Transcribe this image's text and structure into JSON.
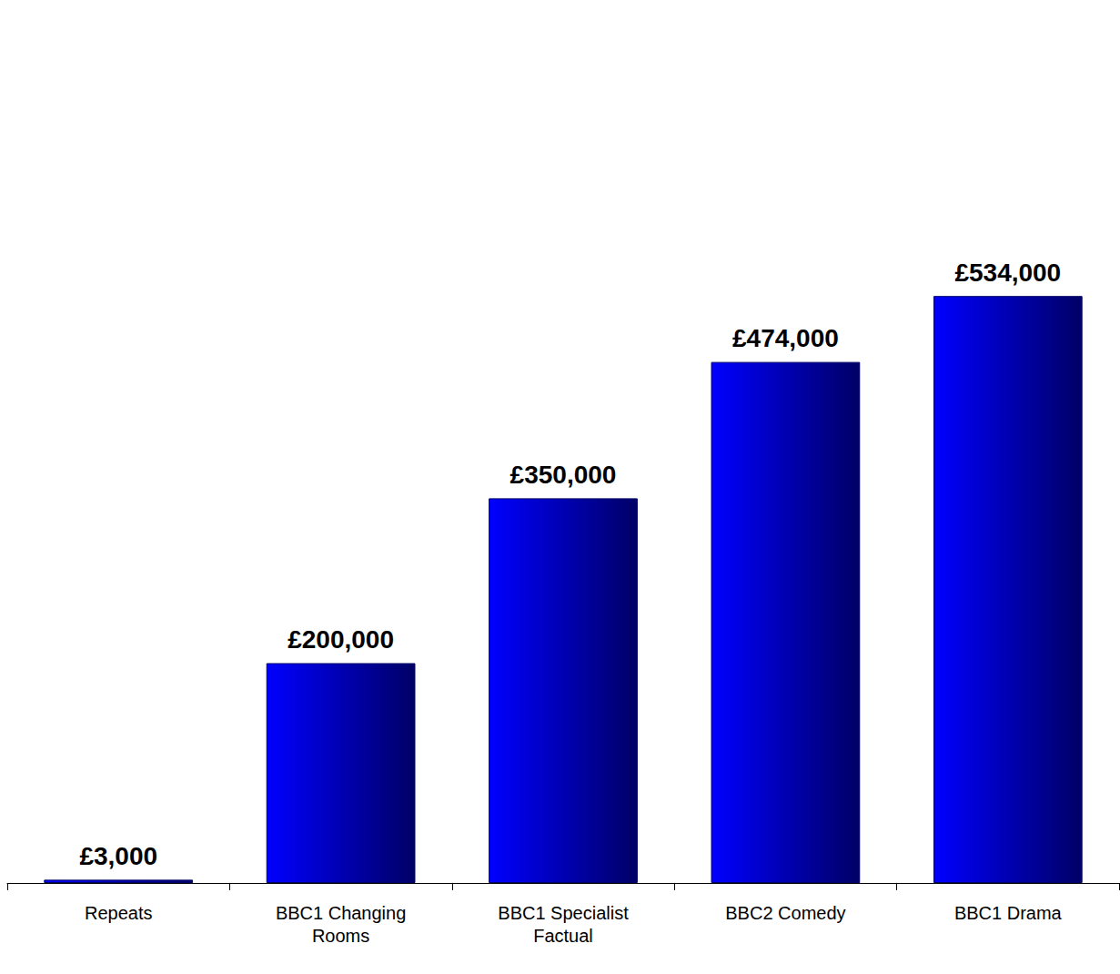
{
  "chart_data": {
    "type": "bar",
    "categories": [
      "Repeats",
      "BBC1 Changing Rooms",
      "BBC1 Specialist Factual",
      "BBC2 Comedy",
      "BBC1 Drama"
    ],
    "values": [
      3000,
      200000,
      350000,
      474000,
      534000
    ],
    "value_labels": [
      "£3,000",
      "£200,000",
      "£350,000",
      "£474,000",
      "£534,000"
    ],
    "color": "#0000ff",
    "ylim": [
      0,
      800000
    ],
    "grid": false,
    "data_labels": true,
    "tick_labels": "x"
  }
}
